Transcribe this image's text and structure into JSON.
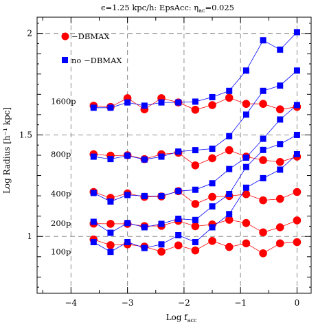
{
  "chart_data": {
    "type": "scatter",
    "title": "ϵ=1.25 kpc/h: EpsAcc: η",
    "title_sub": "ac",
    "title_tail": "=0.025",
    "xlabel": "Log f",
    "xlabel_sub": "acc",
    "ylabel": "Log Radius [h⁻¹ kpc]",
    "xlim": [
      -4.6,
      0.25
    ],
    "ylim": [
      0.72,
      2.08
    ],
    "grid": "dashed at major ticks",
    "x_ticks": [
      -4,
      -3,
      -2,
      -1,
      0
    ],
    "x_tick_labels": [
      "−4",
      "−3",
      "−2",
      "−1",
      "0"
    ],
    "y_ticks": [
      1,
      1.5,
      2
    ],
    "y_tick_labels": [
      "1",
      "1.5",
      "2"
    ],
    "legend": {
      "placement": "top-left",
      "entries": [
        {
          "label": "−DBMAX",
          "marker": "circle",
          "color": "#ff0000"
        },
        {
          "label": "no −DBMAX",
          "marker": "square",
          "color": "#0000ff"
        }
      ]
    },
    "row_labels": [
      {
        "text": "1600p",
        "y": 1.665
      },
      {
        "text": "800p",
        "y": 1.405
      },
      {
        "text": "400p",
        "y": 1.21
      },
      {
        "text": "200p",
        "y": 1.065
      },
      {
        "text": "100p",
        "y": 0.925
      }
    ],
    "x": [
      -3.6,
      -3.3,
      -3.0,
      -2.7,
      -2.4,
      -2.1,
      -1.8,
      -1.5,
      -1.2,
      -0.9,
      -0.6,
      -0.3,
      0.0
    ],
    "series": [
      {
        "marker": "circle",
        "color": "#ff0000",
        "values": [
          1.644,
          1.638,
          1.681,
          1.626,
          1.681,
          1.66,
          1.624,
          1.647,
          1.683,
          1.653,
          1.653,
          1.626,
          1.638
        ]
      },
      {
        "marker": "square",
        "color": "#0000ff",
        "values": [
          1.634,
          1.634,
          1.66,
          1.644,
          1.66,
          1.66,
          1.664,
          1.686,
          1.717,
          1.817,
          1.966,
          1.92,
          2.006
        ]
      },
      {
        "marker": "circle",
        "color": "#ff0000",
        "values": [
          1.405,
          1.398,
          1.4,
          1.381,
          1.405,
          1.412,
          1.35,
          1.385,
          1.425,
          1.393,
          1.376,
          1.367,
          1.393
        ]
      },
      {
        "marker": "square",
        "color": "#0000ff",
        "values": [
          1.393,
          1.381,
          1.398,
          1.379,
          1.393,
          1.418,
          1.425,
          1.432,
          1.494,
          1.6,
          1.717,
          1.743,
          1.817
        ]
      },
      {
        "marker": "circle",
        "color": "#ff0000",
        "values": [
          1.219,
          1.19,
          1.212,
          1.195,
          1.197,
          1.223,
          1.16,
          1.195,
          1.199,
          1.208,
          1.178,
          1.185,
          1.219
        ]
      },
      {
        "marker": "square",
        "color": "#0000ff",
        "values": [
          1.214,
          1.172,
          1.204,
          1.199,
          1.199,
          1.223,
          1.23,
          1.262,
          1.332,
          1.388,
          1.481,
          1.576,
          1.647
        ]
      },
      {
        "marker": "circle",
        "color": "#ff0000",
        "values": [
          1.063,
          1.062,
          1.062,
          1.051,
          1.052,
          1.077,
          1.05,
          1.059,
          1.082,
          1.066,
          1.02,
          1.045,
          1.079
        ]
      },
      {
        "marker": "square",
        "color": "#0000ff",
        "values": [
          1.072,
          1.018,
          1.066,
          1.045,
          1.062,
          1.087,
          1.081,
          1.148,
          1.209,
          1.342,
          1.426,
          1.455,
          1.5
        ]
      },
      {
        "marker": "circle",
        "color": "#ff0000",
        "values": [
          0.985,
          0.957,
          0.961,
          0.95,
          0.925,
          0.956,
          0.931,
          0.978,
          0.948,
          0.966,
          0.917,
          0.966,
          0.972
        ]
      },
      {
        "marker": "square",
        "color": "#0000ff",
        "values": [
          0.972,
          0.924,
          0.972,
          0.943,
          0.961,
          1.006,
          0.972,
          1.045,
          1.11,
          1.24,
          1.287,
          1.329,
          1.405
        ]
      }
    ]
  }
}
